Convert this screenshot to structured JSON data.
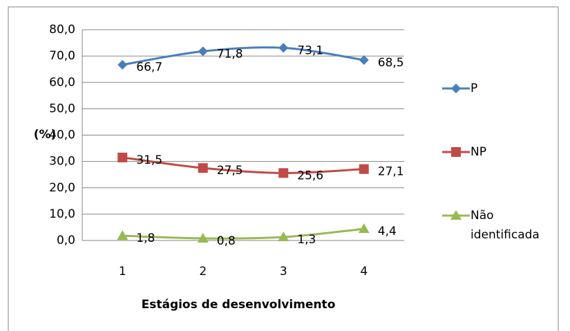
{
  "chart_data": {
    "type": "line",
    "y_label": "(%)",
    "x_label": "Estágios de desenvolvimento",
    "categories": [
      "1",
      "2",
      "3",
      "4"
    ],
    "series": [
      {
        "name": "P",
        "color": "#4a7ebb",
        "marker": "diamond",
        "values": [
          66.7,
          71.8,
          73.1,
          68.5
        ],
        "value_labels": [
          "66,7",
          "71,8",
          "73,1",
          "68,5"
        ]
      },
      {
        "name": "NP",
        "color": "#be4b48",
        "marker": "square",
        "values": [
          31.5,
          27.5,
          25.6,
          27.1
        ],
        "value_labels": [
          "31,5",
          "27,5",
          "25,6",
          "27,1"
        ]
      },
      {
        "name": "Não identificada",
        "color": "#98b954",
        "marker": "triangle",
        "values": [
          1.8,
          0.8,
          1.3,
          4.4
        ],
        "value_labels": [
          "1,8",
          "0,8",
          "1,3",
          "4,4"
        ]
      }
    ],
    "ylim": [
      0,
      80
    ],
    "yticks": [
      {
        "value": 0,
        "label": "0,0"
      },
      {
        "value": 10,
        "label": "10,0"
      },
      {
        "value": 20,
        "label": "20,0"
      },
      {
        "value": 30,
        "label": "30,0"
      },
      {
        "value": 40,
        "label": "40,0"
      },
      {
        "value": 50,
        "label": "50,0"
      },
      {
        "value": 60,
        "label": "60,0"
      },
      {
        "value": 70,
        "label": "70,0"
      },
      {
        "value": 80,
        "label": "80,0"
      }
    ],
    "grid": true,
    "smooth": true,
    "legend": "right"
  }
}
